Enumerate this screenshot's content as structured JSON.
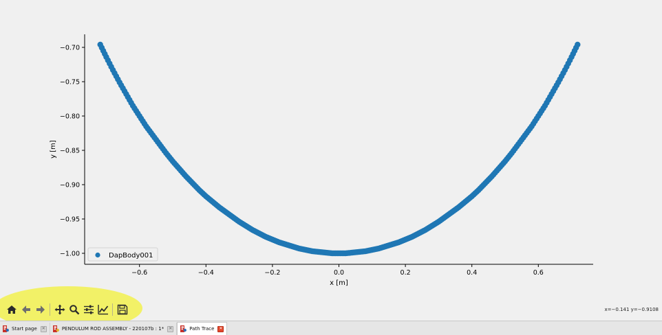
{
  "chart_data": {
    "type": "scatter",
    "title": "",
    "xlabel": "x [m]",
    "ylabel": "y [m]",
    "xlim": [
      -0.765,
      0.765
    ],
    "ylim": [
      -1.016,
      -0.681
    ],
    "xticks": [
      -0.6,
      -0.4,
      -0.2,
      0.0,
      0.2,
      0.4,
      0.6
    ],
    "xtick_labels": [
      "−0.6",
      "−0.4",
      "−0.2",
      "0.0",
      "0.2",
      "0.4",
      "0.6"
    ],
    "yticks": [
      -0.7,
      -0.75,
      -0.8,
      -0.85,
      -0.9,
      -0.95,
      -1.0
    ],
    "ytick_labels": [
      "−0.70",
      "−0.75",
      "−0.80",
      "−0.85",
      "−0.90",
      "−0.95",
      "−1.00"
    ],
    "legend_position": "lower-left",
    "grid": false,
    "series": [
      {
        "name": "DapBody001",
        "color": "#1f77b4",
        "x": [
          -0.718,
          -0.7,
          -0.68,
          -0.66,
          -0.64,
          -0.62,
          -0.6,
          -0.58,
          -0.56,
          -0.54,
          -0.52,
          -0.5,
          -0.48,
          -0.46,
          -0.44,
          -0.42,
          -0.4,
          -0.38,
          -0.36,
          -0.34,
          -0.32,
          -0.3,
          -0.28,
          -0.26,
          -0.24,
          -0.22,
          -0.2,
          -0.18,
          -0.16,
          -0.14,
          -0.12,
          -0.1,
          -0.08,
          -0.06,
          -0.04,
          -0.02,
          0.0,
          0.02,
          0.04,
          0.06,
          0.08,
          0.1,
          0.12,
          0.14,
          0.16,
          0.18,
          0.2,
          0.22,
          0.24,
          0.26,
          0.28,
          0.3,
          0.32,
          0.34,
          0.36,
          0.38,
          0.4,
          0.42,
          0.44,
          0.46,
          0.48,
          0.5,
          0.52,
          0.54,
          0.56,
          0.58,
          0.6,
          0.62,
          0.64,
          0.66,
          0.68,
          0.7,
          0.718
        ],
        "y": [
          -0.696,
          -0.714,
          -0.733,
          -0.751,
          -0.768,
          -0.785,
          -0.8,
          -0.815,
          -0.828,
          -0.841,
          -0.854,
          -0.866,
          -0.877,
          -0.888,
          -0.898,
          -0.908,
          -0.917,
          -0.925,
          -0.933,
          -0.94,
          -0.947,
          -0.954,
          -0.96,
          -0.966,
          -0.971,
          -0.976,
          -0.98,
          -0.984,
          -0.987,
          -0.99,
          -0.993,
          -0.995,
          -0.997,
          -0.998,
          -0.999,
          -1.0,
          -1.0,
          -1.0,
          -0.999,
          -0.998,
          -0.997,
          -0.995,
          -0.993,
          -0.99,
          -0.987,
          -0.984,
          -0.98,
          -0.976,
          -0.971,
          -0.966,
          -0.96,
          -0.954,
          -0.947,
          -0.94,
          -0.933,
          -0.925,
          -0.917,
          -0.908,
          -0.898,
          -0.888,
          -0.877,
          -0.866,
          -0.854,
          -0.841,
          -0.828,
          -0.815,
          -0.8,
          -0.785,
          -0.768,
          -0.751,
          -0.733,
          -0.714,
          -0.696
        ]
      }
    ]
  },
  "toolbar": {
    "buttons": [
      {
        "icon": "home-icon",
        "tooltip": "Home"
      },
      {
        "icon": "back-arrow-icon",
        "tooltip": "Back"
      },
      {
        "icon": "forward-arrow-icon",
        "tooltip": "Forward"
      },
      {
        "icon": "pan-icon",
        "tooltip": "Pan"
      },
      {
        "icon": "zoom-icon",
        "tooltip": "Zoom"
      },
      {
        "icon": "subplots-config-icon",
        "tooltip": "Configure subplots"
      },
      {
        "icon": "edit-curves-icon",
        "tooltip": "Edit axis and curves"
      },
      {
        "icon": "save-icon",
        "tooltip": "Save"
      }
    ],
    "highlight_color": "#f3f13a"
  },
  "status": {
    "coords": "x=−0.141 y=−0.9108"
  },
  "tabs": [
    {
      "label": "Start page",
      "close_style": "grey",
      "active": false
    },
    {
      "label": "PENDULUM ROD ASSEMBLY - 220107b : 1*",
      "close_style": "grey",
      "active": false
    },
    {
      "label": "Path Trace",
      "close_style": "red",
      "active": true
    }
  ]
}
